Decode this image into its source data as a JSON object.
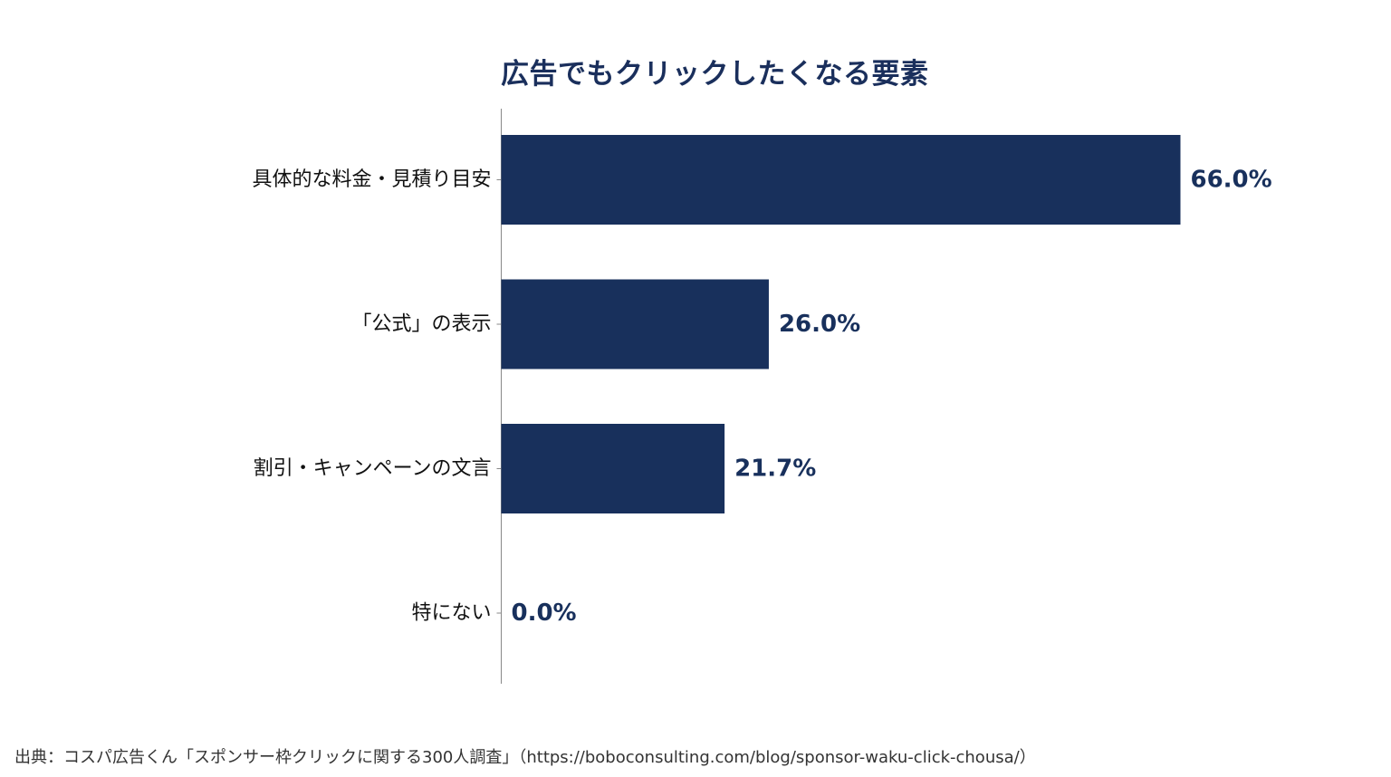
{
  "chart_data": {
    "type": "bar",
    "orientation": "horizontal",
    "title": "広告でもクリックしたくなる要素",
    "categories": [
      "具体的な料金・見積り目安",
      "「公式」の表示",
      "割引・キャンペーンの文言",
      "特にない"
    ],
    "values": [
      66.0,
      26.0,
      21.7,
      0.0
    ],
    "value_labels": [
      "66.0%",
      "26.0%",
      "21.7%",
      "0.0%"
    ],
    "unit": "%",
    "xlim": [
      0,
      66
    ],
    "grid": false,
    "bar_color": "#18305c",
    "label_color": "#18305c"
  },
  "source": "出典：コスパ広告くん「スポンサー枠クリックに関する300人調査」（https://boboconsulting.com/blog/sponsor-waku-click-chousa/）"
}
